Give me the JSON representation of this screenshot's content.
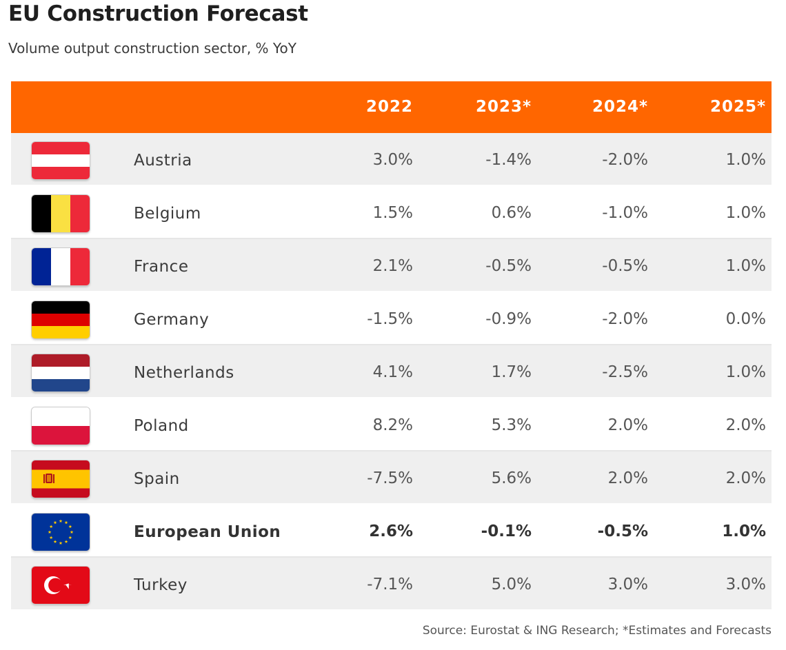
{
  "title": "EU Construction Forecast",
  "subtitle": "Volume output construction sector, % YoY",
  "source": "Source: Eurostat & ING Research; *Estimates and Forecasts",
  "header_color": "#ff6600",
  "chart_data": {
    "type": "table",
    "title": "EU Construction Forecast",
    "subtitle": "Volume output construction sector, % YoY",
    "columns": [
      "2022",
      "2023*",
      "2024*",
      "2025*"
    ],
    "rows": [
      {
        "country": "Austria",
        "flag": "austria-flag",
        "values": [
          "3.0%",
          "-1.4%",
          "-2.0%",
          "1.0%"
        ],
        "bold": false
      },
      {
        "country": "Belgium",
        "flag": "belgium-flag",
        "values": [
          "1.5%",
          "0.6%",
          "-1.0%",
          "1.0%"
        ],
        "bold": false
      },
      {
        "country": "France",
        "flag": "france-flag",
        "values": [
          "2.1%",
          "-0.5%",
          "-0.5%",
          "1.0%"
        ],
        "bold": false
      },
      {
        "country": "Germany",
        "flag": "germany-flag",
        "values": [
          "-1.5%",
          "-0.9%",
          "-2.0%",
          "0.0%"
        ],
        "bold": false
      },
      {
        "country": "Netherlands",
        "flag": "netherlands-flag",
        "values": [
          "4.1%",
          "1.7%",
          "-2.5%",
          "1.0%"
        ],
        "bold": false
      },
      {
        "country": "Poland",
        "flag": "poland-flag",
        "values": [
          "8.2%",
          "5.3%",
          "2.0%",
          "2.0%"
        ],
        "bold": false
      },
      {
        "country": "Spain",
        "flag": "spain-flag",
        "values": [
          "-7.5%",
          "5.6%",
          "2.0%",
          "2.0%"
        ],
        "bold": false
      },
      {
        "country": "European Union",
        "flag": "eu-flag",
        "values": [
          "2.6%",
          "-0.1%",
          "-0.5%",
          "1.0%"
        ],
        "bold": true
      },
      {
        "country": "Turkey",
        "flag": "turkey-flag",
        "values": [
          "-7.1%",
          "5.0%",
          "3.0%",
          "3.0%"
        ],
        "bold": false
      }
    ]
  }
}
